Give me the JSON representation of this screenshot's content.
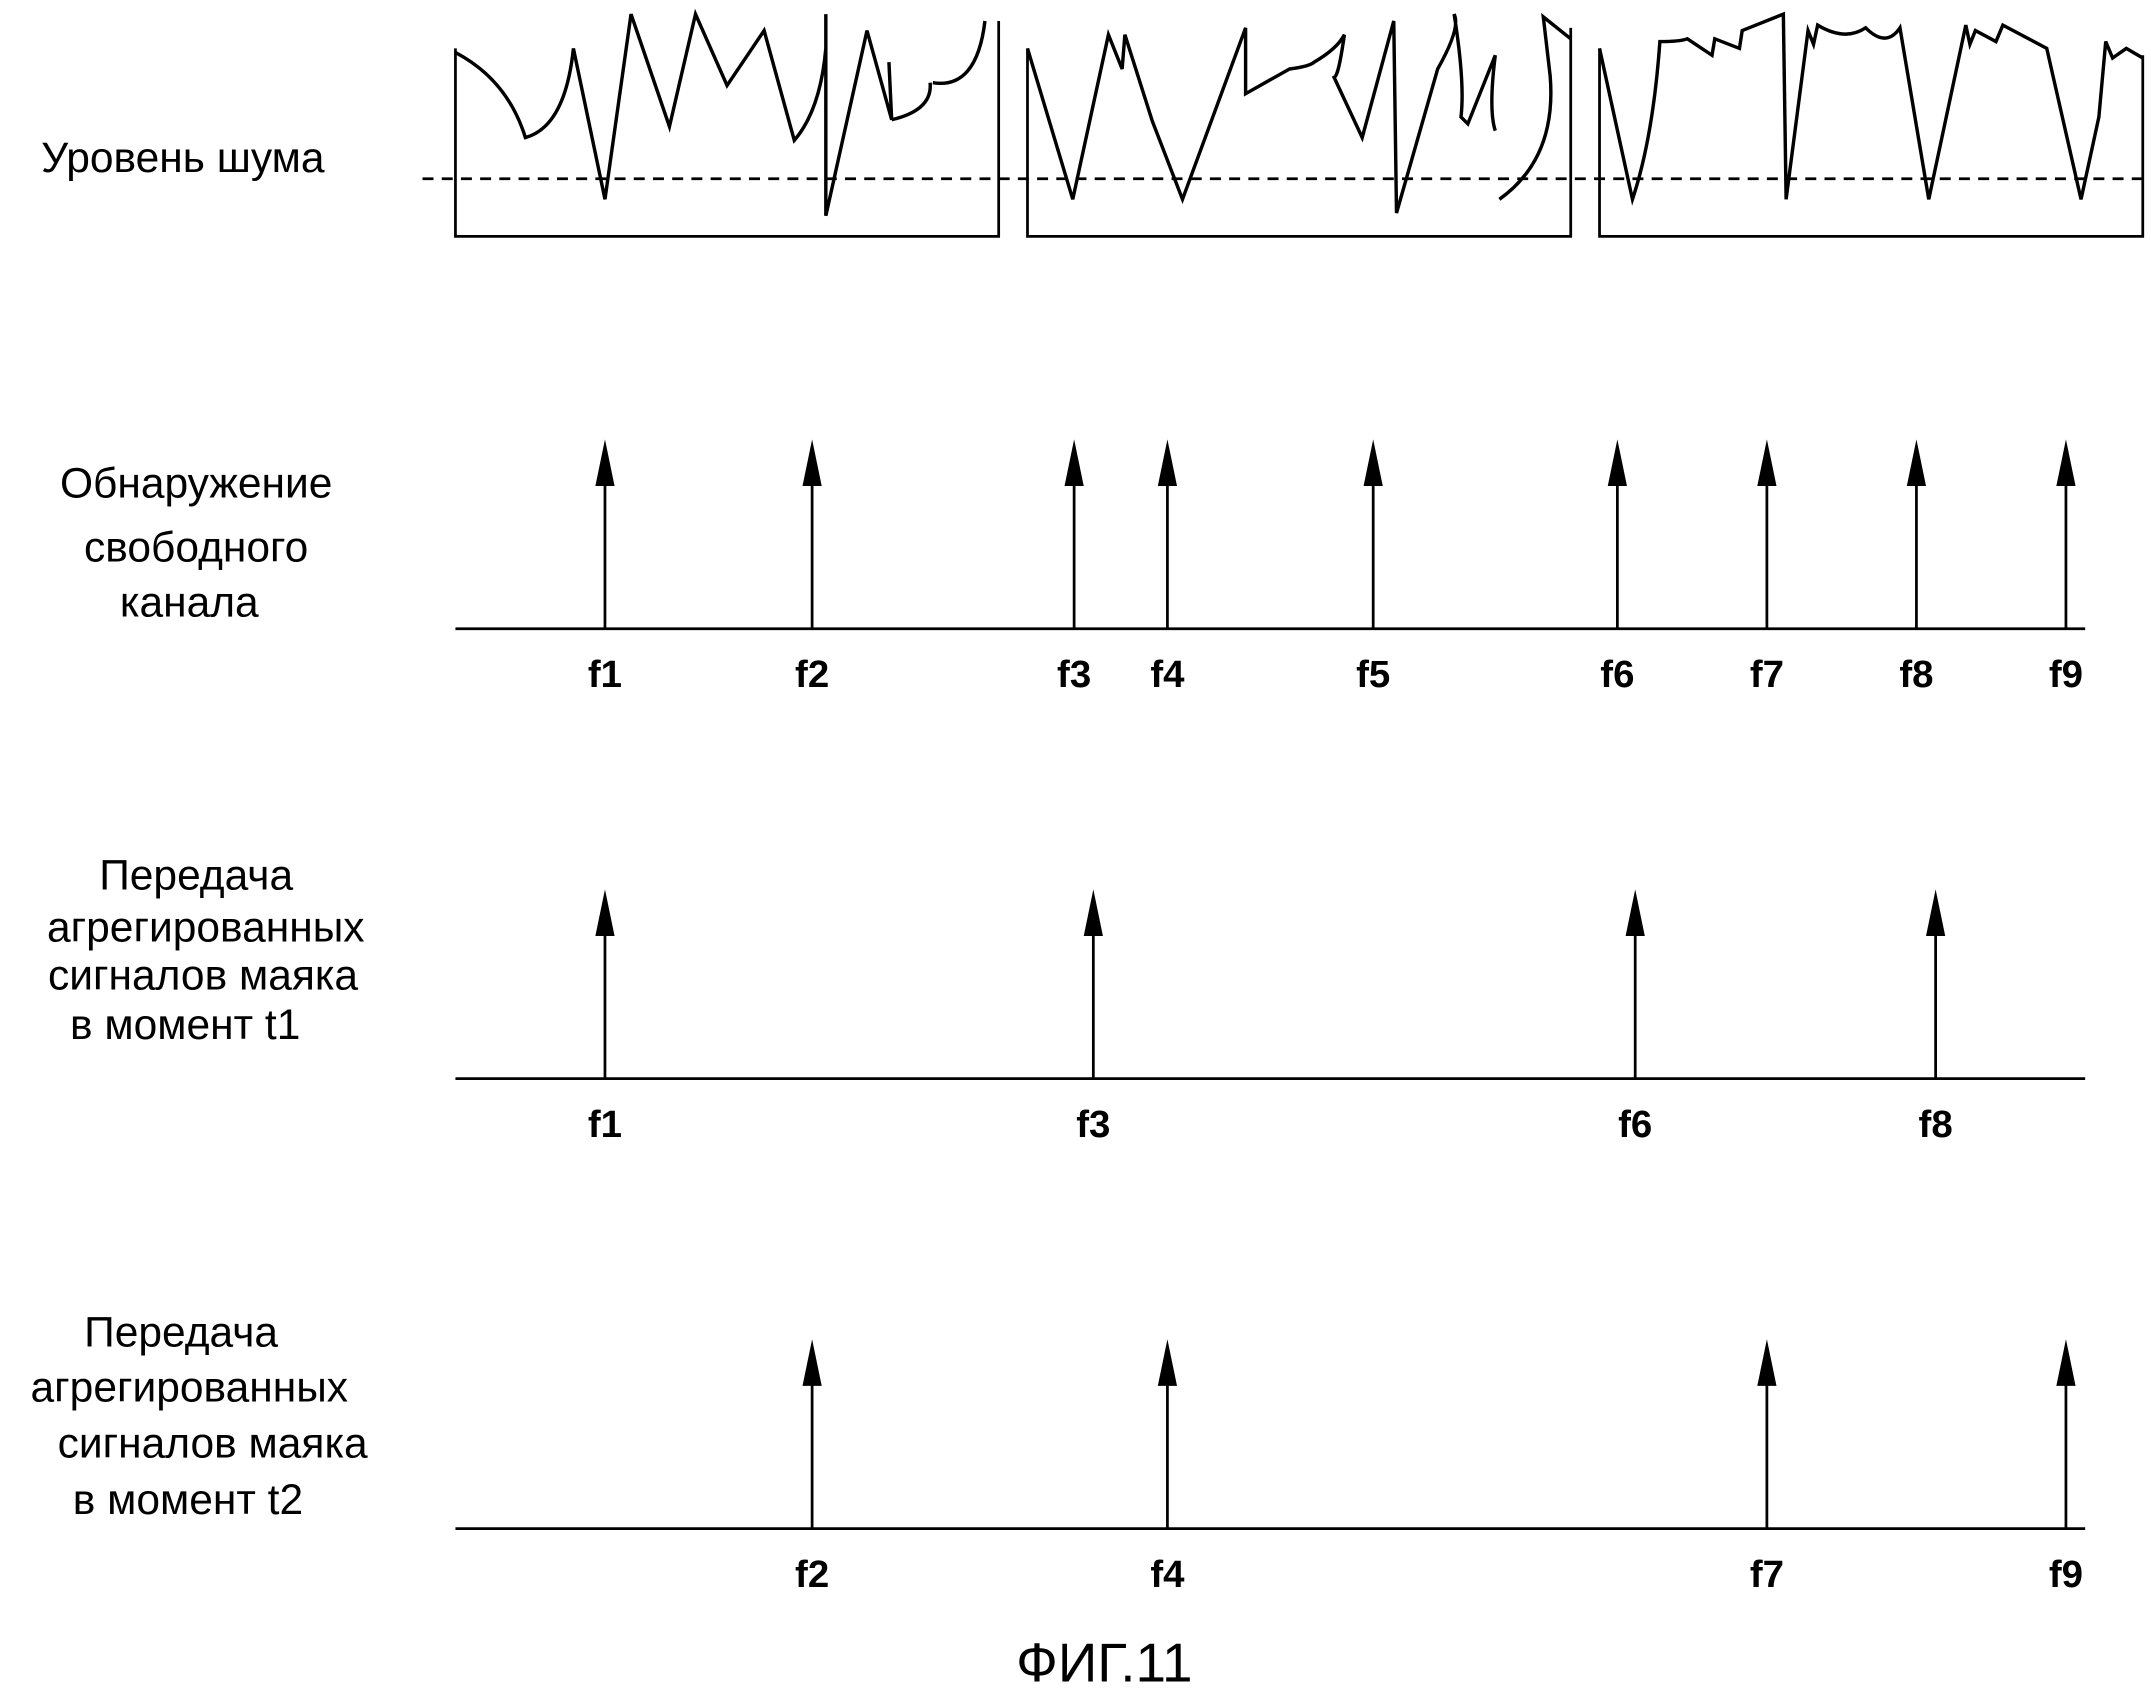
{
  "noise": {
    "label": "Уровень шума"
  },
  "rows": [
    {
      "label": [
        "Обнаружение",
        "свободного",
        "канала"
      ],
      "channels": [
        "f1",
        "f2",
        "f3",
        "f4",
        "f5",
        "f6",
        "f7",
        "f8",
        "f9"
      ]
    },
    {
      "label": [
        "Передача",
        "агрегированных",
        "сигналов маяка",
        "в момент t1"
      ],
      "channels": [
        "f1",
        "f3",
        "f6",
        "f8"
      ]
    },
    {
      "label": [
        "Передача",
        "агрегированных",
        "сигналов маяка",
        "в момент t2"
      ],
      "channels": [
        "f2",
        "f4",
        "f7",
        "f9"
      ]
    }
  ],
  "caption": "ФИГ.11"
}
